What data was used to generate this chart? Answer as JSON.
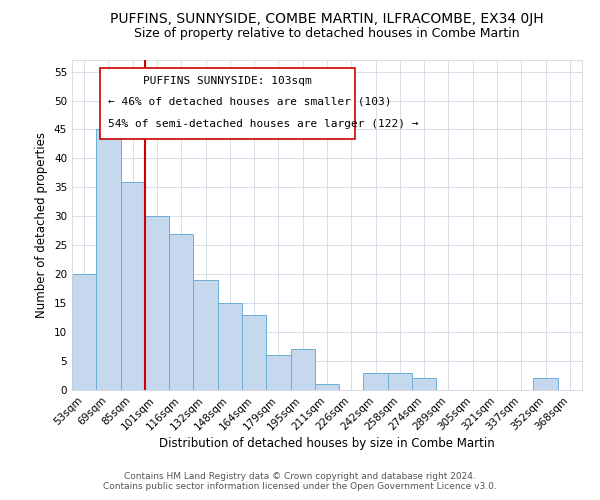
{
  "title": "PUFFINS, SUNNYSIDE, COMBE MARTIN, ILFRACOMBE, EX34 0JH",
  "subtitle": "Size of property relative to detached houses in Combe Martin",
  "xlabel": "Distribution of detached houses by size in Combe Martin",
  "ylabel": "Number of detached properties",
  "bin_labels": [
    "53sqm",
    "69sqm",
    "85sqm",
    "101sqm",
    "116sqm",
    "132sqm",
    "148sqm",
    "164sqm",
    "179sqm",
    "195sqm",
    "211sqm",
    "226sqm",
    "242sqm",
    "258sqm",
    "274sqm",
    "289sqm",
    "305sqm",
    "321sqm",
    "337sqm",
    "352sqm",
    "368sqm"
  ],
  "bar_heights": [
    20,
    45,
    36,
    30,
    27,
    19,
    15,
    13,
    6,
    7,
    1,
    0,
    3,
    3,
    2,
    0,
    0,
    0,
    0,
    2,
    0
  ],
  "bar_color": "#c5d8ed",
  "bar_edge_color": "#6baed6",
  "reference_line_color": "#cc0000",
  "annotation_title": "PUFFINS SUNNYSIDE: 103sqm",
  "annotation_line1": "← 46% of detached houses are smaller (103)",
  "annotation_line2": "54% of semi-detached houses are larger (122) →",
  "footer1": "Contains HM Land Registry data © Crown copyright and database right 2024.",
  "footer2": "Contains public sector information licensed under the Open Government Licence v3.0.",
  "ylim": [
    0,
    57
  ],
  "yticks": [
    0,
    5,
    10,
    15,
    20,
    25,
    30,
    35,
    40,
    45,
    50,
    55
  ],
  "title_fontsize": 10,
  "subtitle_fontsize": 9,
  "axis_label_fontsize": 8.5,
  "tick_fontsize": 7.5,
  "annotation_fontsize": 8,
  "footer_fontsize": 6.5
}
